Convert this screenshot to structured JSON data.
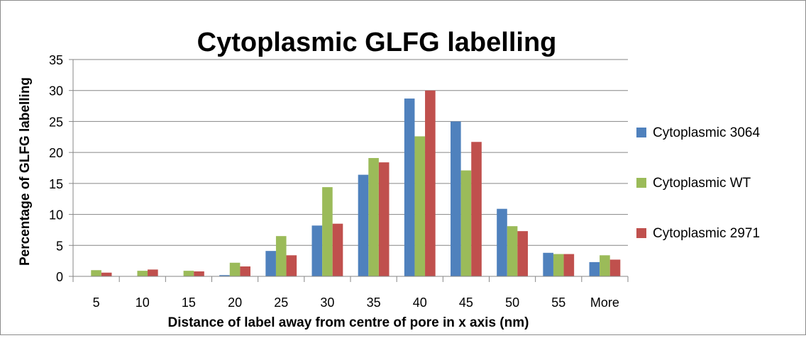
{
  "chart_data": {
    "type": "bar",
    "title": "Cytoplasmic GLFG labelling",
    "xlabel": "Distance of label away from centre of pore in x axis (nm)",
    "ylabel": "Percentage of GLFG labelling",
    "categories": [
      "5",
      "10",
      "15",
      "20",
      "25",
      "30",
      "35",
      "40",
      "45",
      "50",
      "55",
      "More"
    ],
    "ylim": [
      0,
      35
    ],
    "yticks": [
      "0",
      "5",
      "10",
      "15",
      "20",
      "25",
      "30",
      "35"
    ],
    "grid": true,
    "legend_position": "right",
    "series": [
      {
        "name": "Cytoplasmic 3064",
        "color": "#4f81bd",
        "values": [
          0,
          0,
          0,
          0.2,
          4.1,
          8.2,
          16.4,
          28.7,
          25.0,
          10.9,
          3.8,
          2.3
        ]
      },
      {
        "name": "Cytoplasmic WT",
        "color": "#9bbb59",
        "values": [
          1.0,
          0.9,
          0.9,
          2.2,
          6.5,
          14.4,
          19.1,
          22.6,
          17.1,
          8.1,
          3.6,
          3.4
        ]
      },
      {
        "name": "Cytoplasmic 2971",
        "color": "#c0504d",
        "values": [
          0.6,
          1.1,
          0.8,
          1.6,
          3.4,
          8.5,
          18.4,
          30.0,
          21.7,
          7.3,
          3.6,
          2.7
        ]
      }
    ]
  }
}
